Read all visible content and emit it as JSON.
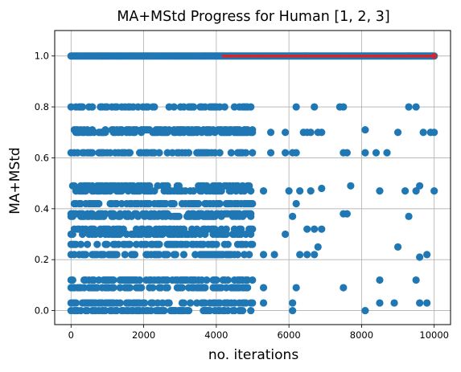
{
  "chart_data": {
    "type": "scatter",
    "title": "MA+MStd Progress for Human [1, 2, 3]",
    "xlabel": "no. iterations",
    "ylabel": "MA+MStd",
    "xlim": [
      -450,
      10450
    ],
    "ylim": [
      -0.055,
      1.1
    ],
    "xticks": [
      0,
      2000,
      4000,
      6000,
      8000,
      10000
    ],
    "yticks": [
      0.0,
      0.2,
      0.4,
      0.6,
      0.8,
      1.0
    ],
    "xtick_labels": [
      "0",
      "2000",
      "4000",
      "6000",
      "8000",
      "10000"
    ],
    "ytick_labels": [
      "0.0",
      "0.2",
      "0.4",
      "0.6",
      "0.8",
      "1.0"
    ],
    "grid": true,
    "colors": {
      "points": "#1f77b4",
      "line": "#d62728",
      "grid": "#b0b0b0"
    },
    "levels": [
      0.0,
      0.03,
      0.09,
      0.12,
      0.22,
      0.26,
      0.3,
      0.32,
      0.37,
      0.38,
      0.42,
      0.47,
      0.49,
      0.62,
      0.7,
      0.71,
      0.8
    ],
    "dense_region": {
      "x_start": 0,
      "x_end": 5000
    },
    "sparse_points": [
      [
        5300,
        0.47
      ],
      [
        5300,
        0.22
      ],
      [
        5300,
        0.09
      ],
      [
        5300,
        0.03
      ],
      [
        5500,
        0.7
      ],
      [
        5500,
        0.62
      ],
      [
        5600,
        0.22
      ],
      [
        5900,
        0.7
      ],
      [
        5900,
        0.62
      ],
      [
        5900,
        0.3
      ],
      [
        6000,
        0.47
      ],
      [
        6100,
        0.62
      ],
      [
        6100,
        0.37
      ],
      [
        6100,
        0.03
      ],
      [
        6100,
        0.0
      ],
      [
        6200,
        0.8
      ],
      [
        6200,
        0.62
      ],
      [
        6200,
        0.42
      ],
      [
        6200,
        0.09
      ],
      [
        6300,
        0.47
      ],
      [
        6300,
        0.22
      ],
      [
        6400,
        0.7
      ],
      [
        6500,
        0.7
      ],
      [
        6500,
        0.32
      ],
      [
        6500,
        0.22
      ],
      [
        6600,
        0.7
      ],
      [
        6600,
        0.47
      ],
      [
        6700,
        0.8
      ],
      [
        6700,
        0.32
      ],
      [
        6700,
        0.22
      ],
      [
        6800,
        0.7
      ],
      [
        6800,
        0.25
      ],
      [
        6900,
        0.7
      ],
      [
        6900,
        0.48
      ],
      [
        6900,
        0.32
      ],
      [
        7400,
        0.8
      ],
      [
        7500,
        0.8
      ],
      [
        7500,
        0.62
      ],
      [
        7500,
        0.38
      ],
      [
        7500,
        0.09
      ],
      [
        7600,
        0.62
      ],
      [
        7600,
        0.38
      ],
      [
        7700,
        0.49
      ],
      [
        8100,
        0.71
      ],
      [
        8100,
        0.62
      ],
      [
        8100,
        0.0
      ],
      [
        8400,
        0.62
      ],
      [
        8500,
        0.47
      ],
      [
        8500,
        0.12
      ],
      [
        8500,
        0.03
      ],
      [
        8700,
        0.62
      ],
      [
        8900,
        0.03
      ],
      [
        9000,
        0.7
      ],
      [
        9000,
        0.25
      ],
      [
        9200,
        0.47
      ],
      [
        9300,
        0.37
      ],
      [
        9300,
        0.8
      ],
      [
        9500,
        0.8
      ],
      [
        9500,
        0.47
      ],
      [
        9500,
        0.12
      ],
      [
        9600,
        0.49
      ],
      [
        9600,
        0.21
      ],
      [
        9600,
        0.03
      ],
      [
        9700,
        0.7
      ],
      [
        9800,
        0.22
      ],
      [
        9800,
        0.03
      ],
      [
        9900,
        0.7
      ],
      [
        10000,
        0.7
      ],
      [
        10000,
        0.47
      ]
    ],
    "series": [
      {
        "x_start": 0,
        "x_end": 10000,
        "y": 1.0,
        "style": "points"
      },
      {
        "x_start": 4150,
        "x_end": 10000,
        "y": 1.0,
        "style": "line"
      }
    ]
  }
}
